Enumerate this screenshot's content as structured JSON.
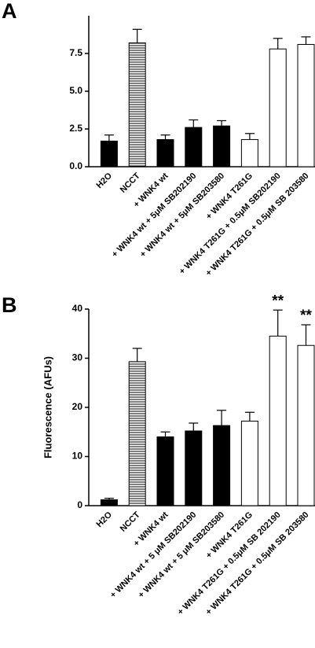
{
  "chart_data": [
    {
      "type": "bar",
      "panel_label": "A",
      "categories": [
        "H2O",
        "NCCT",
        "+ WNK4 wt",
        "+ WNK4 wt + 5μM SB202190",
        "+ WNK4 wt + 5μM SB203580",
        "+ WNK4 T261G",
        "+ WNK4 T261G + 0.5μM SB202190",
        "+ WNK4 T261G + 0.5μM SB 203580"
      ],
      "values": [
        1.7,
        8.2,
        1.8,
        2.6,
        2.7,
        1.8,
        7.8,
        8.1
      ],
      "errors": [
        0.4,
        0.9,
        0.3,
        0.5,
        0.35,
        0.4,
        0.7,
        0.5
      ],
      "bar_styles": [
        "black",
        "striped",
        "black",
        "black",
        "black",
        "white",
        "white",
        "white"
      ],
      "ylim": [
        0,
        10
      ],
      "yticks": [
        {
          "value": 0,
          "label": "0.0"
        },
        2.5,
        {
          "value": 5,
          "label": "5.0"
        },
        7.5
      ]
    },
    {
      "type": "bar",
      "panel_label": "B",
      "y_label": "Fluorescence (AFUs)",
      "categories": [
        "H2O",
        "NCCT",
        "+ WNK4 wt",
        "+ WNK4 wt + 5 μM SB202190",
        "+ WNK4 wt + 5 μM SB203580",
        "+ WNK4 T261G",
        "+ WNK4 T261G + 0.5μM SB 202190",
        "+ WNK4 T261G + 0.5μM SB 203580"
      ],
      "values": [
        1.2,
        29.3,
        14.0,
        15.2,
        16.3,
        17.2,
        34.5,
        32.6
      ],
      "errors": [
        0.3,
        2.7,
        1.0,
        1.6,
        3.1,
        1.8,
        5.3,
        4.2
      ],
      "bar_styles": [
        "black",
        "striped",
        "black",
        "black",
        "black",
        "white",
        "white",
        "white"
      ],
      "value_annotations": [
        null,
        null,
        null,
        null,
        null,
        null,
        "**",
        "**"
      ],
      "ylim": [
        0,
        40
      ],
      "yticks": [
        0,
        10,
        20,
        30,
        40
      ]
    }
  ]
}
